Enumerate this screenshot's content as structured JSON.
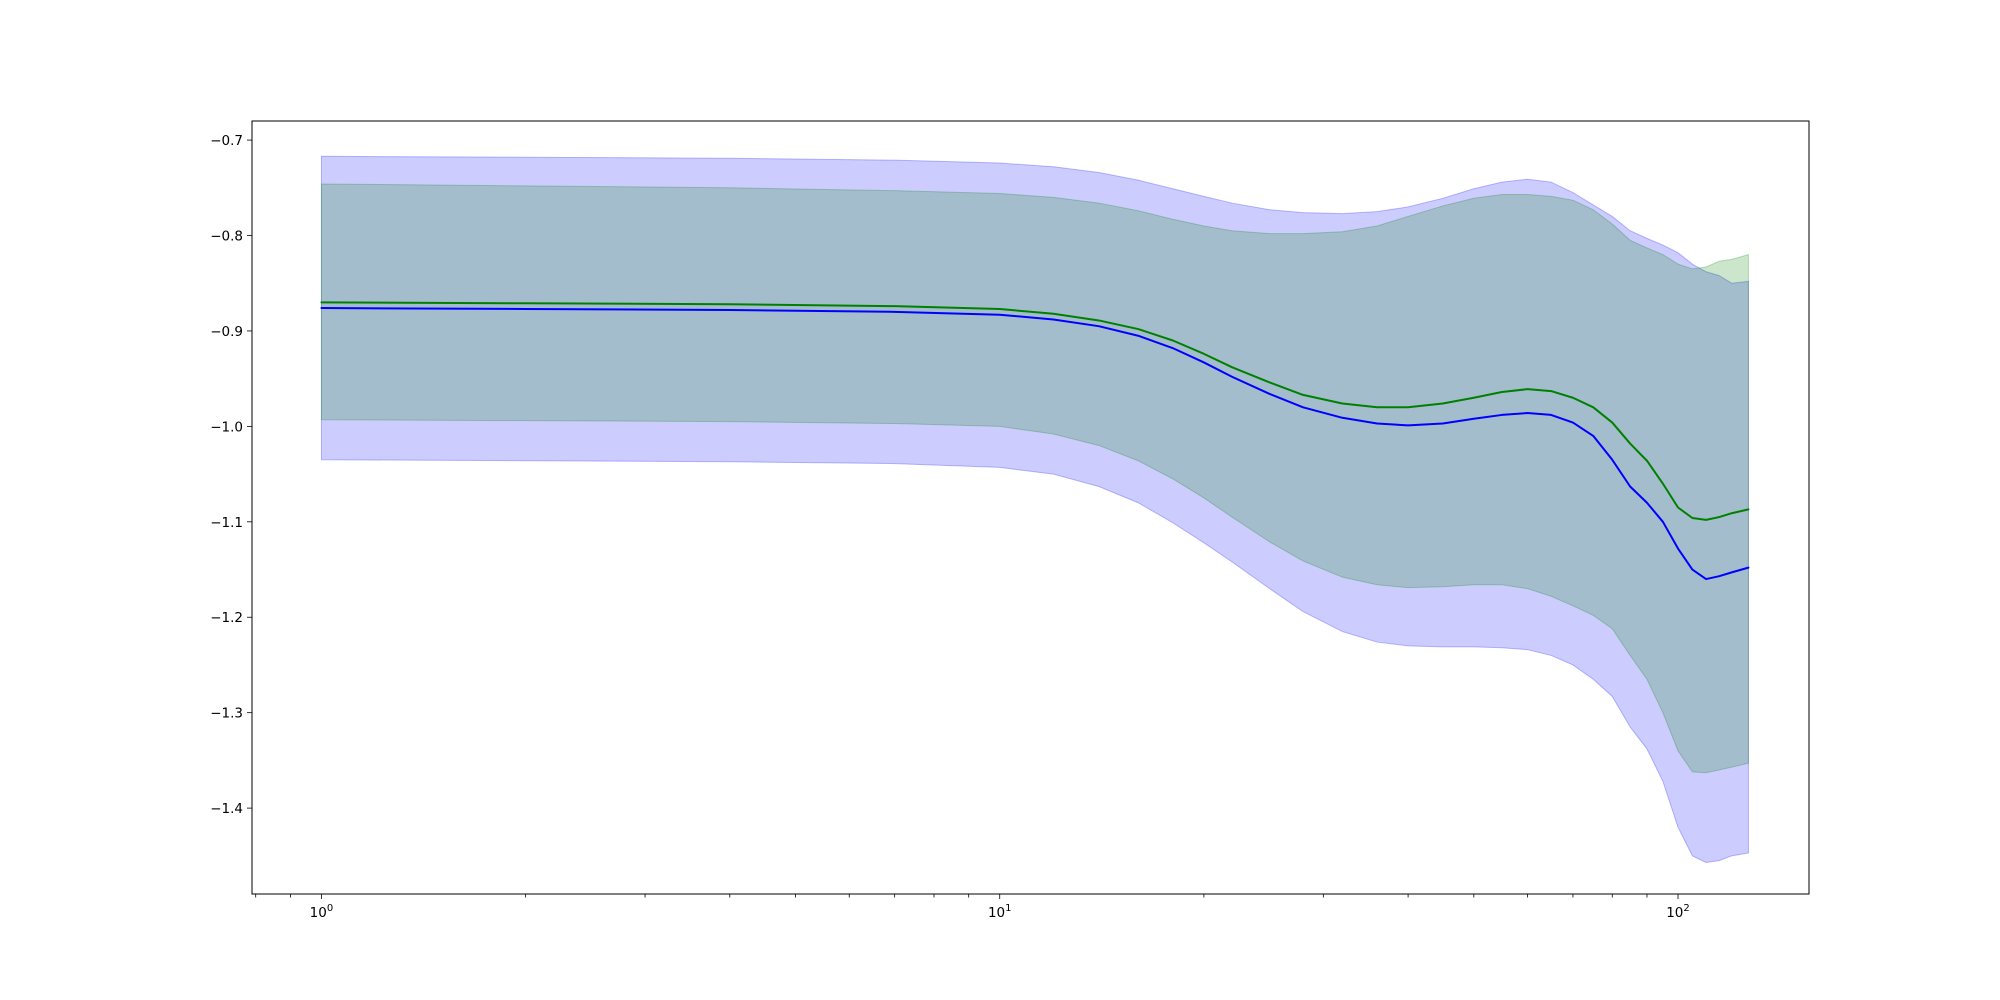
{
  "chart_data": {
    "type": "line",
    "title": "",
    "xlabel": "",
    "ylabel": "",
    "xscale": "log",
    "xlim": [
      0.79,
      156
    ],
    "ylim": [
      -1.49,
      -0.68
    ],
    "xticks_major": [
      {
        "value": 1,
        "base": "10",
        "exp": "0"
      },
      {
        "value": 10,
        "base": "10",
        "exp": "1"
      },
      {
        "value": 100,
        "base": "10",
        "exp": "2"
      }
    ],
    "yticks": [
      {
        "value": -0.7,
        "label": "−0.7"
      },
      {
        "value": -0.8,
        "label": "−0.8"
      },
      {
        "value": -0.9,
        "label": "−0.9"
      },
      {
        "value": -1.0,
        "label": "−1.0"
      },
      {
        "value": -1.1,
        "label": "−1.1"
      },
      {
        "value": -1.2,
        "label": "−1.2"
      },
      {
        "value": -1.3,
        "label": "−1.3"
      },
      {
        "value": -1.4,
        "label": "−1.4"
      }
    ],
    "grid": false,
    "legend": "none",
    "x": [
      1,
      2,
      4,
      7,
      10,
      12,
      14,
      16,
      18,
      20,
      22,
      25,
      28,
      32,
      36,
      40,
      45,
      50,
      55,
      60,
      65,
      70,
      75,
      80,
      85,
      90,
      95,
      100,
      105,
      110,
      115,
      120,
      127
    ],
    "series": [
      {
        "color": "#0000ff",
        "band_color": "#0000ff",
        "band_alpha": 0.2,
        "mean": [
          -0.876,
          -0.877,
          -0.878,
          -0.88,
          -0.883,
          -0.888,
          -0.895,
          -0.905,
          -0.918,
          -0.933,
          -0.948,
          -0.966,
          -0.98,
          -0.991,
          -0.997,
          -0.999,
          -0.997,
          -0.992,
          -0.988,
          -0.986,
          -0.988,
          -0.996,
          -1.01,
          -1.035,
          -1.063,
          -1.08,
          -1.1,
          -1.128,
          -1.15,
          -1.16,
          -1.157,
          -1.153,
          -1.148
        ],
        "upper": [
          -0.717,
          -0.718,
          -0.719,
          -0.721,
          -0.724,
          -0.728,
          -0.734,
          -0.742,
          -0.751,
          -0.759,
          -0.766,
          -0.773,
          -0.776,
          -0.777,
          -0.775,
          -0.77,
          -0.761,
          -0.751,
          -0.744,
          -0.741,
          -0.744,
          -0.755,
          -0.768,
          -0.78,
          -0.795,
          -0.803,
          -0.81,
          -0.818,
          -0.83,
          -0.838,
          -0.842,
          -0.85,
          -0.848
        ],
        "lower": [
          -1.035,
          -1.036,
          -1.037,
          -1.039,
          -1.043,
          -1.05,
          -1.063,
          -1.08,
          -1.101,
          -1.122,
          -1.142,
          -1.17,
          -1.194,
          -1.215,
          -1.226,
          -1.23,
          -1.231,
          -1.231,
          -1.232,
          -1.234,
          -1.24,
          -1.25,
          -1.265,
          -1.283,
          -1.315,
          -1.338,
          -1.372,
          -1.42,
          -1.45,
          -1.457,
          -1.455,
          -1.45,
          -1.447
        ]
      },
      {
        "color": "#008000",
        "band_color": "#008000",
        "band_alpha": 0.2,
        "mean": [
          -0.87,
          -0.871,
          -0.872,
          -0.874,
          -0.877,
          -0.882,
          -0.889,
          -0.898,
          -0.91,
          -0.924,
          -0.938,
          -0.954,
          -0.967,
          -0.976,
          -0.98,
          -0.98,
          -0.976,
          -0.97,
          -0.964,
          -0.961,
          -0.963,
          -0.97,
          -0.98,
          -0.996,
          -1.018,
          -1.036,
          -1.06,
          -1.085,
          -1.096,
          -1.098,
          -1.095,
          -1.091,
          -1.087
        ],
        "upper": [
          -0.746,
          -0.748,
          -0.75,
          -0.753,
          -0.756,
          -0.76,
          -0.766,
          -0.774,
          -0.783,
          -0.79,
          -0.795,
          -0.798,
          -0.798,
          -0.796,
          -0.79,
          -0.78,
          -0.769,
          -0.761,
          -0.757,
          -0.757,
          -0.759,
          -0.763,
          -0.773,
          -0.788,
          -0.805,
          -0.813,
          -0.82,
          -0.83,
          -0.835,
          -0.833,
          -0.827,
          -0.825,
          -0.82
        ],
        "lower": [
          -0.993,
          -0.994,
          -0.995,
          -0.997,
          -1.0,
          -1.008,
          -1.02,
          -1.036,
          -1.055,
          -1.075,
          -1.095,
          -1.121,
          -1.141,
          -1.158,
          -1.166,
          -1.169,
          -1.168,
          -1.166,
          -1.166,
          -1.17,
          -1.178,
          -1.188,
          -1.198,
          -1.212,
          -1.24,
          -1.265,
          -1.3,
          -1.34,
          -1.362,
          -1.363,
          -1.36,
          -1.357,
          -1.353
        ]
      }
    ]
  }
}
